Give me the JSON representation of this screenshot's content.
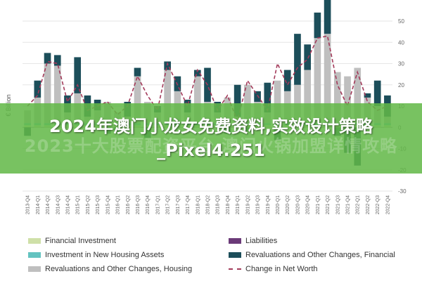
{
  "banner": {
    "title": "2024年澳门小龙女免费资料,实效设计策略_Pixel4.251",
    "watermark": "2023十大股票配资平台 澳门火锅加盟详情攻略"
  },
  "chart_data": {
    "type": "bar",
    "ylabel": "€ Billion",
    "ylim": [
      -30,
      50
    ],
    "yticks": [
      50,
      40,
      30,
      20,
      10,
      0,
      -10,
      -20,
      -30
    ],
    "categories": [
      "2013-Q4",
      "2014-Q1",
      "2014-Q2",
      "2014-Q3",
      "2014-Q4",
      "2015-Q1",
      "2015-Q2",
      "2015-Q3",
      "2015-Q4",
      "2016-Q1",
      "2016-Q2",
      "2016-Q3",
      "2016-Q4",
      "2017-Q1",
      "2017-Q2",
      "2017-Q3",
      "2017-Q4",
      "2018-Q1",
      "2018-Q2",
      "2018-Q3",
      "2018-Q4",
      "2019-Q1",
      "2019-Q2",
      "2019-Q3",
      "2019-Q4",
      "2020-Q1",
      "2020-Q2",
      "2020-Q3",
      "2020-Q4",
      "2021-Q1",
      "2021-Q2",
      "2021-Q3",
      "2021-Q4",
      "2022-Q1",
      "2022-Q2",
      "2022-Q3",
      "2022-Q4"
    ],
    "series": [
      {
        "name": "Financial Investment",
        "color": "#cfe0a8",
        "values": [
          1,
          1,
          1,
          1,
          1,
          1,
          1,
          1,
          1,
          1,
          1,
          1,
          1,
          1,
          1,
          1,
          1,
          1,
          1,
          1,
          1,
          1,
          1,
          1,
          1,
          1,
          1,
          1,
          1,
          1,
          1,
          1,
          1,
          1,
          1,
          1,
          1
        ]
      },
      {
        "name": "Investment in New Housing Assets",
        "color": "#63c3c0",
        "values": [
          1,
          1,
          1,
          1,
          1,
          1,
          1,
          1,
          1,
          1,
          1,
          1,
          1,
          1,
          1,
          1,
          1,
          1,
          1,
          1,
          1,
          1,
          1,
          1,
          1,
          1,
          1,
          1,
          1,
          1,
          1,
          1,
          1,
          1,
          1,
          1,
          1
        ]
      },
      {
        "name": "Revaluations and Other Changes, Housing",
        "color": "#bfbfbf",
        "values": [
          6,
          12,
          28,
          27,
          5,
          14,
          3,
          6,
          10,
          5,
          3,
          22,
          10,
          5,
          25,
          15,
          5,
          22,
          10,
          5,
          12,
          3,
          18,
          10,
          5,
          20,
          15,
          18,
          25,
          40,
          42,
          24,
          22,
          26,
          12,
          8,
          3
        ]
      },
      {
        "name": "Liabilities",
        "color": "#6b3a78",
        "values": [
          0,
          0,
          0,
          0,
          0,
          0,
          0,
          0,
          0,
          0,
          0,
          0,
          0,
          0,
          0,
          0,
          0,
          0,
          0,
          0,
          0,
          0,
          0,
          0,
          0,
          0,
          0,
          0,
          0,
          0,
          0,
          0,
          0,
          0,
          0,
          0,
          0
        ]
      },
      {
        "name": "Revaluations and Other Changes, Financial",
        "color": "#1c4e5a",
        "values": [
          -4,
          8,
          5,
          5,
          8,
          17,
          10,
          5,
          -3,
          -2,
          7,
          4,
          -5,
          3,
          4,
          7,
          6,
          3,
          16,
          5,
          -3,
          15,
          -2,
          5,
          14,
          -6,
          10,
          24,
          12,
          12,
          18,
          -4,
          -12,
          -18,
          2,
          12,
          10
        ]
      }
    ],
    "line": {
      "name": "Change in Net Worth",
      "color": "#a33a5a",
      "values": [
        10,
        15,
        31,
        30,
        12,
        20,
        8,
        10,
        12,
        6,
        10,
        24,
        15,
        8,
        30,
        20,
        10,
        27,
        20,
        8,
        15,
        3,
        22,
        15,
        8,
        30,
        20,
        28,
        32,
        42,
        43,
        20,
        10,
        26,
        12,
        8,
        10
      ]
    }
  }
}
